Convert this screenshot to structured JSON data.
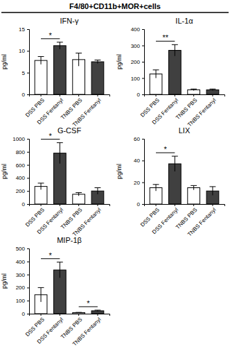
{
  "title": "F4/80+CD11b+MOR+cells",
  "chart_data": [
    {
      "type": "bar",
      "title": "IFN-γ",
      "y_label": "pg/ml",
      "categories": [
        "DSS PBS",
        "DSS Fentanyl",
        "TNBS PBS",
        "TNBS Fentanyl"
      ],
      "values": [
        7.8,
        11.2,
        8.0,
        7.5
      ],
      "errors": [
        0.9,
        0.8,
        1.5,
        0.4
      ],
      "colors": [
        "#ffffff",
        "#404040",
        "#ffffff",
        "#404040"
      ],
      "ylim": [
        0,
        15
      ],
      "yticks": [
        0,
        5,
        10,
        15
      ],
      "annotations": [
        {
          "text": "*",
          "from": 0,
          "to": 1
        }
      ]
    },
    {
      "type": "bar",
      "title": "IL-1α",
      "y_label": "pg/ml",
      "categories": [
        "DSS PBS",
        "DSS Fentanyl",
        "TNBS PBS",
        "TNBS Fentanyl"
      ],
      "values": [
        125,
        270,
        28,
        28
      ],
      "errors": [
        25,
        35,
        5,
        5
      ],
      "colors": [
        "#ffffff",
        "#404040",
        "#ffffff",
        "#404040"
      ],
      "ylim": [
        0,
        400
      ],
      "yticks": [
        0,
        100,
        200,
        300,
        400
      ],
      "annotations": [
        {
          "text": "**",
          "from": 0,
          "to": 1
        }
      ]
    },
    {
      "type": "bar",
      "title": "G-CSF",
      "y_label": "pg/ml",
      "categories": [
        "DSS PBS",
        "DSS Fentanyl",
        "TNBS PBS",
        "TNBS Fentanyl"
      ],
      "values": [
        270,
        780,
        150,
        200
      ],
      "errors": [
        50,
        160,
        25,
        50
      ],
      "colors": [
        "#ffffff",
        "#404040",
        "#ffffff",
        "#404040"
      ],
      "ylim": [
        0,
        1000
      ],
      "yticks": [
        0,
        200,
        400,
        600,
        800,
        1000
      ],
      "annotations": [
        {
          "text": "*",
          "from": 0,
          "to": 1
        }
      ]
    },
    {
      "type": "bar",
      "title": "LIX",
      "y_label": "pg/ml",
      "categories": [
        "DSS PBS",
        "DSS Fentanyl",
        "TNBS PBS",
        "TNBS Fentanyl"
      ],
      "values": [
        15,
        37,
        15,
        12
      ],
      "errors": [
        3,
        7,
        2,
        4
      ],
      "colors": [
        "#ffffff",
        "#404040",
        "#ffffff",
        "#404040"
      ],
      "ylim": [
        0,
        60
      ],
      "yticks": [
        0,
        20,
        40,
        60
      ],
      "annotations": [
        {
          "text": "*",
          "from": 0,
          "to": 1
        }
      ]
    },
    {
      "type": "bar",
      "title": "MIP-1β",
      "y_label": "pg/ml",
      "categories": [
        "DSS PBS",
        "DSS Fentanyl",
        "TNBS PBS",
        "TNBS Fentanyl"
      ],
      "values": [
        145,
        335,
        8,
        22
      ],
      "errors": [
        55,
        60,
        2,
        5
      ],
      "colors": [
        "#ffffff",
        "#404040",
        "#ffffff",
        "#404040"
      ],
      "ylim": [
        0,
        500
      ],
      "yticks": [
        0,
        100,
        200,
        300,
        400,
        500
      ],
      "annotations": [
        {
          "text": "*",
          "from": 0,
          "to": 1
        },
        {
          "text": "*",
          "from": 2,
          "to": 3
        }
      ]
    }
  ]
}
